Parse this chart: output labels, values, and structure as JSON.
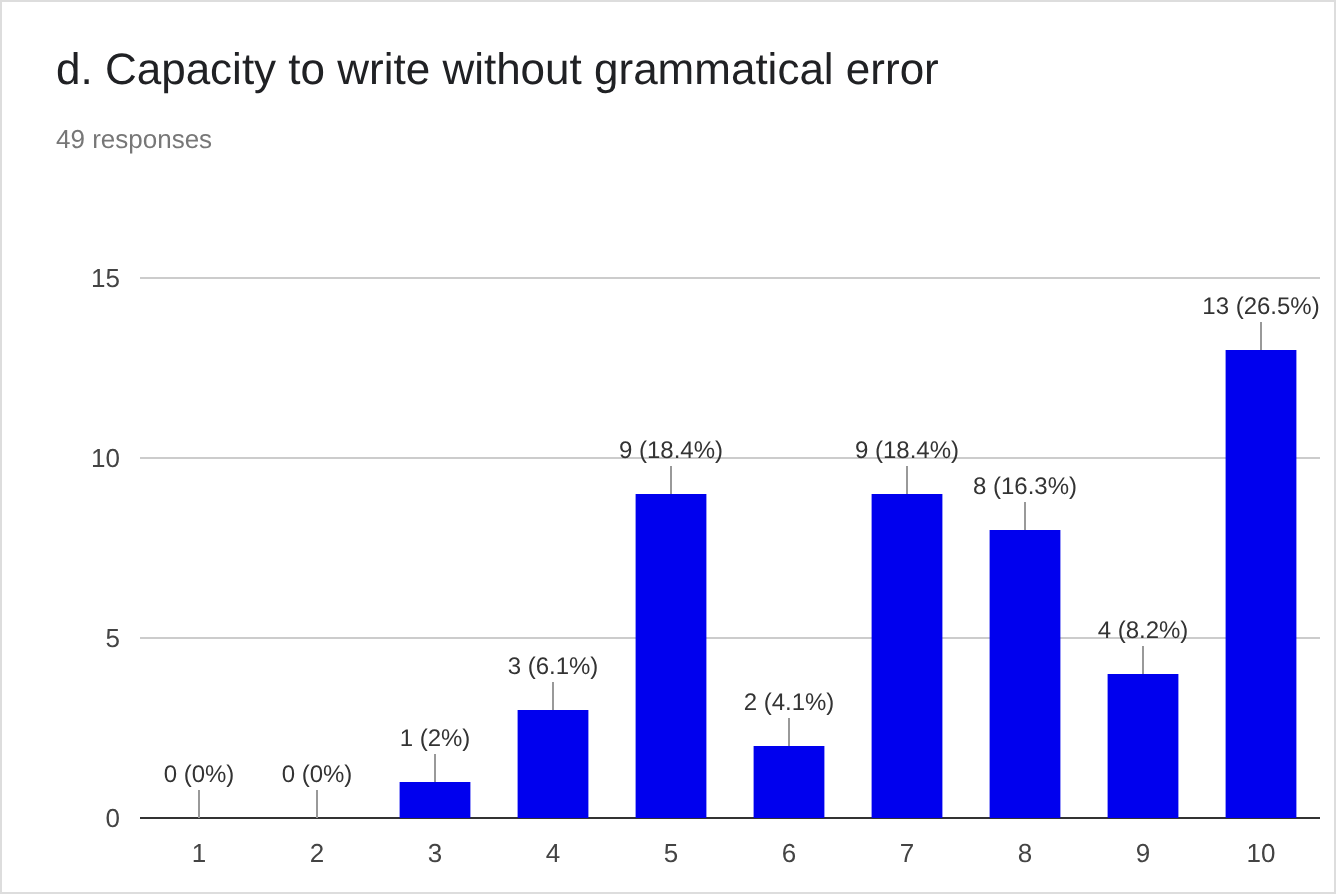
{
  "chart_data": {
    "type": "bar",
    "title": "d. Capacity to write without grammatical error",
    "subtitle": "49 responses",
    "categories": [
      "1",
      "2",
      "3",
      "4",
      "5",
      "6",
      "7",
      "8",
      "9",
      "10"
    ],
    "values": [
      0,
      0,
      1,
      3,
      9,
      2,
      9,
      8,
      4,
      13
    ],
    "value_labels": [
      "0 (0%)",
      "0 (0%)",
      "1 (2%)",
      "3 (6.1%)",
      "9 (18.4%)",
      "2 (4.1%)",
      "9 (18.4%)",
      "8 (16.3%)",
      "4 (8.2%)",
      "13 (26.5%)"
    ],
    "color": "#0000ee",
    "ylim": [
      0,
      15
    ],
    "yticks": [
      0,
      5,
      10,
      15
    ],
    "grid": "y"
  }
}
